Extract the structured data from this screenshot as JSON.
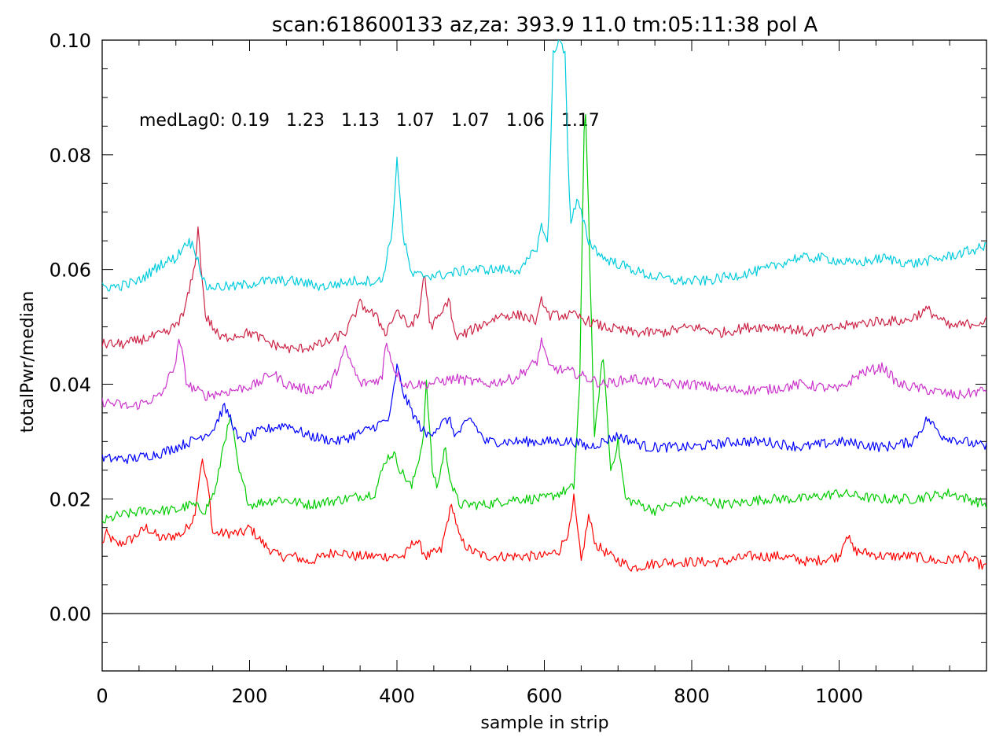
{
  "chart_data": {
    "type": "line",
    "title": "scan:618600133 az,za: 393.9    11.0 tm:05:11:38 pol A",
    "xlabel": "sample in strip",
    "ylabel": "totalPwr/median",
    "xlim": [
      0,
      1200
    ],
    "ylim": [
      -0.01,
      0.1
    ],
    "xticks": [
      "0",
      "200",
      "400",
      "600",
      "800",
      "1000"
    ],
    "yticks": [
      "0.00",
      "0.02",
      "0.04",
      "0.06",
      "0.08",
      "0.10"
    ],
    "zero_line": 0.0,
    "grid": false,
    "legend": "none",
    "annotation": "medLag0: 0.19   1.23   1.13   1.07   1.07   1.06   1.17",
    "series": [
      {
        "color": "#ff0000",
        "points": [
          [
            0,
            0.012
          ],
          [
            5,
            0.014
          ],
          [
            20,
            0.012
          ],
          [
            40,
            0.013
          ],
          [
            60,
            0.015
          ],
          [
            80,
            0.013
          ],
          [
            110,
            0.014
          ],
          [
            125,
            0.017
          ],
          [
            135,
            0.027
          ],
          [
            145,
            0.021
          ],
          [
            150,
            0.014
          ],
          [
            170,
            0.014
          ],
          [
            190,
            0.014
          ],
          [
            200,
            0.015
          ],
          [
            220,
            0.012
          ],
          [
            240,
            0.01
          ],
          [
            260,
            0.01
          ],
          [
            280,
            0.009
          ],
          [
            300,
            0.01
          ],
          [
            320,
            0.011
          ],
          [
            340,
            0.01
          ],
          [
            360,
            0.01
          ],
          [
            390,
            0.01
          ],
          [
            410,
            0.01
          ],
          [
            425,
            0.013
          ],
          [
            440,
            0.01
          ],
          [
            460,
            0.011
          ],
          [
            470,
            0.017
          ],
          [
            475,
            0.019
          ],
          [
            485,
            0.013
          ],
          [
            500,
            0.011
          ],
          [
            520,
            0.01
          ],
          [
            540,
            0.01
          ],
          [
            560,
            0.01
          ],
          [
            600,
            0.01
          ],
          [
            620,
            0.011
          ],
          [
            635,
            0.015
          ],
          [
            640,
            0.02
          ],
          [
            650,
            0.009
          ],
          [
            660,
            0.017
          ],
          [
            670,
            0.012
          ],
          [
            690,
            0.01
          ],
          [
            720,
            0.008
          ],
          [
            760,
            0.009
          ],
          [
            800,
            0.009
          ],
          [
            840,
            0.009
          ],
          [
            880,
            0.01
          ],
          [
            920,
            0.01
          ],
          [
            960,
            0.009
          ],
          [
            1000,
            0.01
          ],
          [
            1010,
            0.014
          ],
          [
            1020,
            0.011
          ],
          [
            1060,
            0.01
          ],
          [
            1100,
            0.01
          ],
          [
            1140,
            0.009
          ],
          [
            1170,
            0.01
          ],
          [
            1200,
            0.008
          ]
        ]
      },
      {
        "color": "#00cc00",
        "points": [
          [
            0,
            0.016
          ],
          [
            20,
            0.017
          ],
          [
            60,
            0.018
          ],
          [
            100,
            0.018
          ],
          [
            120,
            0.019
          ],
          [
            140,
            0.018
          ],
          [
            155,
            0.022
          ],
          [
            165,
            0.03
          ],
          [
            175,
            0.034
          ],
          [
            185,
            0.025
          ],
          [
            200,
            0.019
          ],
          [
            240,
            0.02
          ],
          [
            280,
            0.019
          ],
          [
            330,
            0.02
          ],
          [
            370,
            0.021
          ],
          [
            385,
            0.027
          ],
          [
            395,
            0.028
          ],
          [
            405,
            0.025
          ],
          [
            420,
            0.022
          ],
          [
            435,
            0.03
          ],
          [
            440,
            0.04
          ],
          [
            448,
            0.025
          ],
          [
            455,
            0.022
          ],
          [
            465,
            0.029
          ],
          [
            475,
            0.022
          ],
          [
            485,
            0.019
          ],
          [
            520,
            0.019
          ],
          [
            560,
            0.02
          ],
          [
            600,
            0.02
          ],
          [
            640,
            0.022
          ],
          [
            648,
            0.04
          ],
          [
            655,
            0.092
          ],
          [
            660,
            0.07
          ],
          [
            668,
            0.03
          ],
          [
            675,
            0.04
          ],
          [
            680,
            0.045
          ],
          [
            690,
            0.025
          ],
          [
            700,
            0.03
          ],
          [
            710,
            0.02
          ],
          [
            750,
            0.018
          ],
          [
            800,
            0.02
          ],
          [
            850,
            0.019
          ],
          [
            900,
            0.02
          ],
          [
            950,
            0.02
          ],
          [
            1000,
            0.021
          ],
          [
            1050,
            0.02
          ],
          [
            1100,
            0.02
          ],
          [
            1150,
            0.021
          ],
          [
            1200,
            0.019
          ]
        ]
      },
      {
        "color": "#0000ff",
        "points": [
          [
            0,
            0.027
          ],
          [
            40,
            0.027
          ],
          [
            80,
            0.028
          ],
          [
            120,
            0.03
          ],
          [
            150,
            0.032
          ],
          [
            165,
            0.036
          ],
          [
            175,
            0.034
          ],
          [
            185,
            0.03
          ],
          [
            200,
            0.031
          ],
          [
            220,
            0.032
          ],
          [
            250,
            0.033
          ],
          [
            280,
            0.031
          ],
          [
            320,
            0.03
          ],
          [
            360,
            0.032
          ],
          [
            390,
            0.034
          ],
          [
            400,
            0.043
          ],
          [
            410,
            0.038
          ],
          [
            425,
            0.034
          ],
          [
            440,
            0.031
          ],
          [
            460,
            0.033
          ],
          [
            470,
            0.034
          ],
          [
            480,
            0.031
          ],
          [
            500,
            0.034
          ],
          [
            520,
            0.03
          ],
          [
            560,
            0.03
          ],
          [
            600,
            0.03
          ],
          [
            640,
            0.03
          ],
          [
            660,
            0.029
          ],
          [
            700,
            0.031
          ],
          [
            740,
            0.029
          ],
          [
            800,
            0.029
          ],
          [
            860,
            0.03
          ],
          [
            900,
            0.03
          ],
          [
            950,
            0.029
          ],
          [
            1000,
            0.03
          ],
          [
            1060,
            0.029
          ],
          [
            1100,
            0.03
          ],
          [
            1120,
            0.034
          ],
          [
            1140,
            0.031
          ],
          [
            1170,
            0.03
          ],
          [
            1200,
            0.029
          ]
        ]
      },
      {
        "color": "#cc33cc",
        "points": [
          [
            0,
            0.037
          ],
          [
            40,
            0.036
          ],
          [
            80,
            0.038
          ],
          [
            100,
            0.044
          ],
          [
            105,
            0.048
          ],
          [
            115,
            0.04
          ],
          [
            140,
            0.038
          ],
          [
            180,
            0.039
          ],
          [
            210,
            0.04
          ],
          [
            230,
            0.042
          ],
          [
            250,
            0.04
          ],
          [
            280,
            0.039
          ],
          [
            310,
            0.04
          ],
          [
            330,
            0.046
          ],
          [
            350,
            0.04
          ],
          [
            380,
            0.041
          ],
          [
            385,
            0.048
          ],
          [
            395,
            0.043
          ],
          [
            410,
            0.04
          ],
          [
            440,
            0.04
          ],
          [
            480,
            0.041
          ],
          [
            520,
            0.04
          ],
          [
            560,
            0.041
          ],
          [
            590,
            0.044
          ],
          [
            597,
            0.048
          ],
          [
            605,
            0.043
          ],
          [
            640,
            0.042
          ],
          [
            680,
            0.04
          ],
          [
            720,
            0.041
          ],
          [
            760,
            0.04
          ],
          [
            800,
            0.04
          ],
          [
            850,
            0.039
          ],
          [
            900,
            0.039
          ],
          [
            950,
            0.04
          ],
          [
            1000,
            0.039
          ],
          [
            1030,
            0.042
          ],
          [
            1060,
            0.043
          ],
          [
            1080,
            0.04
          ],
          [
            1120,
            0.039
          ],
          [
            1160,
            0.038
          ],
          [
            1200,
            0.039
          ]
        ]
      },
      {
        "color": "#cc2244",
        "points": [
          [
            0,
            0.047
          ],
          [
            30,
            0.047
          ],
          [
            60,
            0.048
          ],
          [
            90,
            0.049
          ],
          [
            110,
            0.052
          ],
          [
            125,
            0.06
          ],
          [
            130,
            0.067
          ],
          [
            140,
            0.052
          ],
          [
            160,
            0.048
          ],
          [
            200,
            0.049
          ],
          [
            230,
            0.047
          ],
          [
            260,
            0.046
          ],
          [
            300,
            0.047
          ],
          [
            330,
            0.049
          ],
          [
            350,
            0.054
          ],
          [
            370,
            0.052
          ],
          [
            385,
            0.049
          ],
          [
            400,
            0.053
          ],
          [
            415,
            0.05
          ],
          [
            430,
            0.052
          ],
          [
            437,
            0.06
          ],
          [
            445,
            0.05
          ],
          [
            460,
            0.052
          ],
          [
            470,
            0.055
          ],
          [
            480,
            0.048
          ],
          [
            510,
            0.05
          ],
          [
            540,
            0.052
          ],
          [
            570,
            0.052
          ],
          [
            590,
            0.051
          ],
          [
            597,
            0.055
          ],
          [
            605,
            0.052
          ],
          [
            640,
            0.052
          ],
          [
            680,
            0.05
          ],
          [
            720,
            0.049
          ],
          [
            760,
            0.049
          ],
          [
            800,
            0.05
          ],
          [
            840,
            0.049
          ],
          [
            880,
            0.05
          ],
          [
            920,
            0.05
          ],
          [
            960,
            0.049
          ],
          [
            1000,
            0.05
          ],
          [
            1050,
            0.051
          ],
          [
            1090,
            0.051
          ],
          [
            1120,
            0.053
          ],
          [
            1150,
            0.05
          ],
          [
            1200,
            0.051
          ]
        ]
      },
      {
        "color": "#00ccdd",
        "points": [
          [
            0,
            0.057
          ],
          [
            20,
            0.057
          ],
          [
            50,
            0.058
          ],
          [
            80,
            0.061
          ],
          [
            100,
            0.062
          ],
          [
            115,
            0.065
          ],
          [
            125,
            0.064
          ],
          [
            140,
            0.057
          ],
          [
            180,
            0.057
          ],
          [
            220,
            0.058
          ],
          [
            260,
            0.058
          ],
          [
            300,
            0.057
          ],
          [
            340,
            0.058
          ],
          [
            380,
            0.058
          ],
          [
            395,
            0.068
          ],
          [
            400,
            0.08
          ],
          [
            408,
            0.066
          ],
          [
            420,
            0.059
          ],
          [
            460,
            0.059
          ],
          [
            500,
            0.06
          ],
          [
            540,
            0.06
          ],
          [
            570,
            0.06
          ],
          [
            590,
            0.064
          ],
          [
            597,
            0.068
          ],
          [
            605,
            0.064
          ],
          [
            612,
            0.098
          ],
          [
            620,
            0.1
          ],
          [
            628,
            0.098
          ],
          [
            635,
            0.068
          ],
          [
            645,
            0.072
          ],
          [
            660,
            0.065
          ],
          [
            680,
            0.062
          ],
          [
            700,
            0.061
          ],
          [
            740,
            0.059
          ],
          [
            780,
            0.058
          ],
          [
            820,
            0.058
          ],
          [
            860,
            0.059
          ],
          [
            900,
            0.06
          ],
          [
            940,
            0.062
          ],
          [
            980,
            0.062
          ],
          [
            1020,
            0.061
          ],
          [
            1060,
            0.062
          ],
          [
            1100,
            0.061
          ],
          [
            1140,
            0.062
          ],
          [
            1170,
            0.063
          ],
          [
            1200,
            0.064
          ]
        ]
      }
    ]
  }
}
